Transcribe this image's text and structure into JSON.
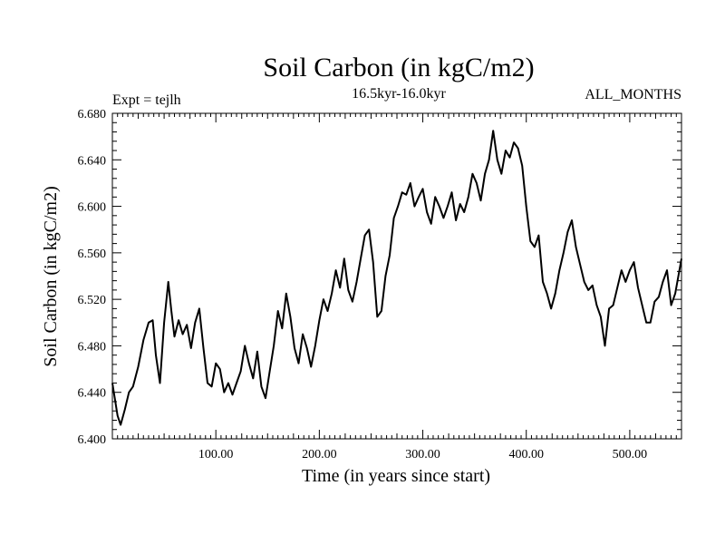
{
  "chart_data": {
    "type": "line",
    "title": "Soil Carbon (in kgC/m2)",
    "subtitle": "16.5kyr-16.0kyr",
    "left_label": "Expt = tejlh",
    "right_label": "ALL_MONTHS",
    "xlabel": "Time (in years since start)",
    "ylabel": "Soil Carbon (in kgC/m2)",
    "xlim": [
      0,
      550
    ],
    "ylim": [
      6.4,
      6.68
    ],
    "x_ticks": [
      "100.00",
      "200.00",
      "300.00",
      "400.00",
      "500.00"
    ],
    "y_ticks": [
      "6.400",
      "6.440",
      "6.480",
      "6.520",
      "6.560",
      "6.600",
      "6.640",
      "6.680"
    ],
    "series": [
      {
        "name": "Soil Carbon",
        "x": [
          0,
          5,
          8,
          12,
          16,
          20,
          25,
          30,
          35,
          39,
          42,
          46,
          50,
          54,
          57,
          60,
          64,
          68,
          72,
          76,
          80,
          84,
          88,
          92,
          96,
          100,
          104,
          108,
          112,
          116,
          120,
          124,
          128,
          132,
          136,
          140,
          144,
          148,
          152,
          156,
          160,
          164,
          168,
          172,
          176,
          180,
          184,
          188,
          192,
          196,
          200,
          204,
          208,
          212,
          216,
          220,
          224,
          228,
          232,
          236,
          240,
          244,
          248,
          252,
          256,
          260,
          264,
          268,
          272,
          276,
          280,
          284,
          288,
          292,
          296,
          300,
          304,
          308,
          312,
          316,
          320,
          324,
          328,
          332,
          336,
          340,
          344,
          348,
          352,
          356,
          360,
          364,
          368,
          372,
          376,
          380,
          384,
          388,
          392,
          396,
          400,
          404,
          408,
          412,
          416,
          420,
          424,
          428,
          432,
          436,
          440,
          444,
          448,
          452,
          456,
          460,
          464,
          468,
          472,
          476,
          480,
          484,
          488,
          492,
          496,
          500,
          504,
          508,
          512,
          516,
          520,
          524,
          528,
          532,
          536,
          540,
          544,
          548,
          550
        ],
        "values": [
          6.448,
          6.42,
          6.412,
          6.425,
          6.44,
          6.445,
          6.462,
          6.485,
          6.5,
          6.502,
          6.472,
          6.448,
          6.5,
          6.535,
          6.51,
          6.488,
          6.502,
          6.49,
          6.498,
          6.478,
          6.5,
          6.512,
          6.478,
          6.448,
          6.445,
          6.465,
          6.46,
          6.44,
          6.448,
          6.438,
          6.448,
          6.458,
          6.48,
          6.465,
          6.452,
          6.475,
          6.445,
          6.435,
          6.458,
          6.48,
          6.51,
          6.495,
          6.525,
          6.505,
          6.478,
          6.465,
          6.49,
          6.478,
          6.462,
          6.48,
          6.502,
          6.52,
          6.51,
          6.525,
          6.545,
          6.53,
          6.555,
          6.528,
          6.518,
          6.535,
          6.555,
          6.575,
          6.58,
          6.552,
          6.505,
          6.51,
          6.54,
          6.558,
          6.59,
          6.6,
          6.612,
          6.61,
          6.62,
          6.6,
          6.608,
          6.615,
          6.595,
          6.585,
          6.608,
          6.6,
          6.59,
          6.6,
          6.612,
          6.588,
          6.602,
          6.595,
          6.608,
          6.628,
          6.62,
          6.605,
          6.628,
          6.64,
          6.665,
          6.64,
          6.628,
          6.648,
          6.642,
          6.655,
          6.65,
          6.635,
          6.6,
          6.57,
          6.565,
          6.575,
          6.535,
          6.525,
          6.512,
          6.525,
          6.545,
          6.56,
          6.578,
          6.588,
          6.565,
          6.55,
          6.535,
          6.528,
          6.532,
          6.515,
          6.505,
          6.48,
          6.512,
          6.515,
          6.53,
          6.545,
          6.535,
          6.545,
          6.552,
          6.53,
          6.515,
          6.5,
          6.5,
          6.518,
          6.522,
          6.535,
          6.545,
          6.515,
          6.525,
          6.545,
          6.555
        ]
      }
    ]
  }
}
